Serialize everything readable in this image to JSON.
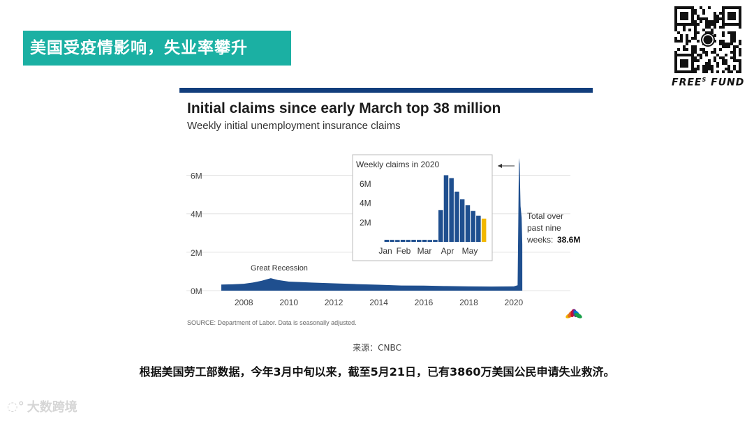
{
  "slide": {
    "banner_title": "美国受疫情影响，失业率攀升",
    "brand": "FREE",
    "brand_sup": "S",
    "brand_suffix": "FUND",
    "caption": "来源：CNBC",
    "body_text": "根据美国劳工部数据，今年3月中旬以来，截至5月21日，已有3860万美国公民申请失业救济。",
    "watermark": "大数跨境",
    "colors": {
      "banner": "#1bb0a3",
      "chart_blue": "#1f4f8f",
      "highlight": "#f2b800",
      "topbar": "#123e7c"
    }
  },
  "chart_data": [
    {
      "type": "area",
      "title": "Initial claims since early March top 38 million",
      "subtitle": "Weekly initial unemployment insurance claims",
      "source": "SOURCE: Department of Labor. Data is seasonally adjusted.",
      "y_ticks": [
        "6M",
        "4M",
        "2M",
        "0M"
      ],
      "y_tick_values": [
        6000000,
        4000000,
        2000000,
        0
      ],
      "x_ticks": [
        "2008",
        "2010",
        "2012",
        "2014",
        "2016",
        "2018",
        "2020"
      ],
      "x_tick_values": [
        2008,
        2010,
        2012,
        2014,
        2016,
        2018,
        2020
      ],
      "ylim": [
        0,
        7000000
      ],
      "xlim": [
        2007,
        2020.5
      ],
      "grid": true,
      "annotation_recession": "Great Recession",
      "annotation_total": [
        "Total over",
        "past nine",
        "weeks:"
      ],
      "annotation_total_value": "38.6M",
      "series": [
        {
          "x": [
            2007.0,
            2007.5,
            2008.0,
            2008.4,
            2008.8,
            2009.2,
            2009.5,
            2010.0,
            2010.5,
            2011.0,
            2012.0,
            2013.0,
            2014.0,
            2015.0,
            2016.0,
            2017.0,
            2018.0,
            2019.0,
            2020.0,
            2020.17,
            2020.2,
            2020.23,
            2020.26,
            2020.3,
            2020.35,
            2020.38
          ],
          "y": [
            320000,
            330000,
            360000,
            420000,
            520000,
            650000,
            560000,
            470000,
            450000,
            420000,
            380000,
            340000,
            310000,
            270000,
            260000,
            240000,
            220000,
            215000,
            220000,
            280000,
            3300000,
            6900000,
            6600000,
            4400000,
            3800000,
            2400000
          ]
        }
      ]
    },
    {
      "type": "bar",
      "title": "Weekly claims in 2020",
      "y_ticks": [
        "6M",
        "4M",
        "2M"
      ],
      "y_tick_values": [
        6000000,
        4000000,
        2000000
      ],
      "x_ticks": [
        "Jan",
        "Feb",
        "Mar",
        "Apr",
        "May"
      ],
      "ylim": [
        0,
        7000000
      ],
      "values": [
        220000,
        210000,
        205000,
        215000,
        210000,
        220000,
        210000,
        215000,
        200000,
        210000,
        3300000,
        6900000,
        6600000,
        5200000,
        4400000,
        3800000,
        3200000,
        2700000,
        2400000
      ],
      "highlight_last": true
    }
  ]
}
